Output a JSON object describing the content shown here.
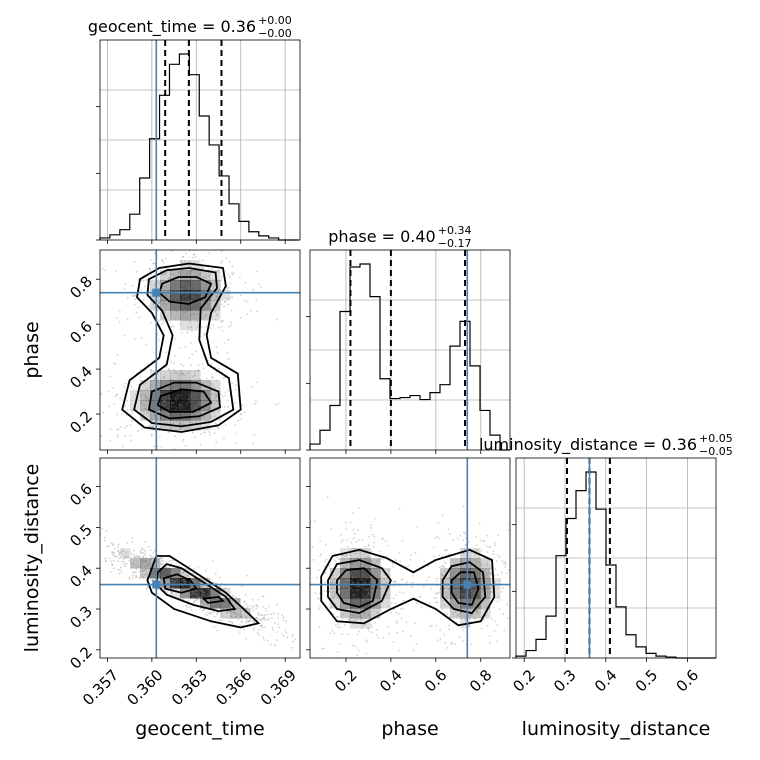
{
  "chart_data": {
    "type": "corner",
    "parameters": [
      "geocent_time",
      "phase",
      "luminosity_distance"
    ],
    "truths": {
      "geocent_time": 0.3603,
      "phase": 0.74,
      "luminosity_distance": 0.36
    },
    "axes": {
      "geocent_time": {
        "lim": [
          0.3565,
          0.37
        ],
        "ticks": [
          0.357,
          0.36,
          0.363,
          0.366,
          0.369
        ],
        "ticklabels": [
          "0.357",
          "0.360",
          "0.363",
          "0.366",
          "0.369"
        ]
      },
      "phase": {
        "lim": [
          0.04,
          0.93
        ],
        "ticks": [
          0.2,
          0.4,
          0.6,
          0.8
        ],
        "ticklabels": [
          "0.2",
          "0.4",
          "0.6",
          "0.8"
        ]
      },
      "luminosity_distance": {
        "lim": [
          0.18,
          0.67
        ],
        "ticks": [
          0.2,
          0.3,
          0.4,
          0.5,
          0.6
        ],
        "ticklabels": [
          "0.2",
          "0.3",
          "0.4",
          "0.5",
          "0.6"
        ]
      }
    },
    "marginals": [
      {
        "parameter": "geocent_time",
        "title": "geocent_time = 0.36",
        "title_sup": "+0.00",
        "title_sub": "−0.00",
        "quantiles": [
          0.3609,
          0.3625,
          0.3647
        ],
        "bin_edges": [
          0.3565,
          0.35717,
          0.35784,
          0.35851,
          0.35918,
          0.35985,
          0.36052,
          0.36119,
          0.36186,
          0.36253,
          0.3632,
          0.36387,
          0.36454,
          0.36521,
          0.36588,
          0.36655,
          0.36722,
          0.36789,
          0.36856,
          0.36923,
          0.3699
        ],
        "counts": [
          2,
          5,
          10,
          25,
          60,
          98,
          140,
          170,
          180,
          160,
          120,
          92,
          62,
          35,
          18,
          8,
          4,
          2,
          0,
          0
        ]
      },
      {
        "parameter": "phase",
        "title": "phase = 0.40",
        "title_sup": "+0.34",
        "title_sub": "−0.17",
        "quantiles": [
          0.22,
          0.4,
          0.73
        ],
        "bin_edges": [
          0.04,
          0.0845,
          0.129,
          0.1735,
          0.218,
          0.2625,
          0.307,
          0.3515,
          0.396,
          0.4405,
          0.485,
          0.5295,
          0.574,
          0.6185,
          0.663,
          0.7075,
          0.752,
          0.7965,
          0.841,
          0.8855,
          0.93
        ],
        "counts": [
          6,
          20,
          45,
          140,
          185,
          188,
          155,
          72,
          52,
          53,
          55,
          51,
          58,
          66,
          105,
          130,
          85,
          40,
          15,
          0
        ]
      },
      {
        "parameter": "luminosity_distance",
        "title": "luminosity_distance = 0.36",
        "title_sup": "+0.05",
        "title_sub": "−0.05",
        "quantiles": [
          0.305,
          0.36,
          0.41
        ],
        "bin_edges": [
          0.18,
          0.2045,
          0.229,
          0.2535,
          0.278,
          0.3025,
          0.327,
          0.3515,
          0.376,
          0.4005,
          0.425,
          0.4495,
          0.474,
          0.4985,
          0.523,
          0.5475,
          0.572,
          0.5965,
          0.621,
          0.6455,
          0.67
        ],
        "counts": [
          2,
          8,
          20,
          45,
          110,
          150,
          180,
          200,
          160,
          100,
          55,
          25,
          12,
          5,
          2,
          1,
          0,
          0,
          0,
          0
        ]
      }
    ],
    "joints": [
      {
        "x": "geocent_time",
        "y": "phase",
        "modes": [
          {
            "x": 0.3618,
            "y": 0.26,
            "sx": 0.0015,
            "sy": 0.065,
            "w": 0.55
          },
          {
            "x": 0.3624,
            "y": 0.73,
            "sx": 0.0013,
            "sy": 0.07,
            "w": 0.45
          }
        ],
        "contours": [
          [
            [
              0.3592,
              0.8
            ],
            [
              0.3605,
              0.85
            ],
            [
              0.3625,
              0.87
            ],
            [
              0.3648,
              0.85
            ],
            [
              0.365,
              0.77
            ],
            [
              0.364,
              0.65
            ],
            [
              0.3637,
              0.55
            ],
            [
              0.364,
              0.45
            ],
            [
              0.3658,
              0.38
            ],
            [
              0.366,
              0.22
            ],
            [
              0.3645,
              0.15
            ],
            [
              0.362,
              0.12
            ],
            [
              0.3595,
              0.14
            ],
            [
              0.358,
              0.22
            ],
            [
              0.3585,
              0.35
            ],
            [
              0.3605,
              0.45
            ],
            [
              0.3608,
              0.55
            ],
            [
              0.36,
              0.65
            ],
            [
              0.359,
              0.72
            ]
          ],
          [
            [
              0.3598,
              0.8
            ],
            [
              0.361,
              0.84
            ],
            [
              0.3625,
              0.85
            ],
            [
              0.3643,
              0.83
            ],
            [
              0.3644,
              0.76
            ],
            [
              0.3633,
              0.67
            ],
            [
              0.3632,
              0.53
            ],
            [
              0.3638,
              0.42
            ],
            [
              0.3652,
              0.36
            ],
            [
              0.3655,
              0.22
            ],
            [
              0.364,
              0.165
            ],
            [
              0.362,
              0.145
            ],
            [
              0.36,
              0.16
            ],
            [
              0.3588,
              0.22
            ],
            [
              0.3592,
              0.33
            ],
            [
              0.361,
              0.42
            ],
            [
              0.3614,
              0.55
            ],
            [
              0.3607,
              0.66
            ],
            [
              0.3597,
              0.73
            ]
          ],
          [
            [
              0.3607,
              0.78
            ],
            [
              0.3618,
              0.81
            ],
            [
              0.363,
              0.81
            ],
            [
              0.364,
              0.78
            ],
            [
              0.3636,
              0.72
            ],
            [
              0.3625,
              0.69
            ],
            [
              0.3612,
              0.7
            ],
            [
              0.3605,
              0.74
            ]
          ],
          [
            [
              0.36,
              0.3
            ],
            [
              0.3615,
              0.34
            ],
            [
              0.363,
              0.34
            ],
            [
              0.3645,
              0.3
            ],
            [
              0.3646,
              0.23
            ],
            [
              0.3632,
              0.19
            ],
            [
              0.3612,
              0.18
            ],
            [
              0.3598,
              0.22
            ]
          ],
          [
            [
              0.3606,
              0.28
            ],
            [
              0.362,
              0.31
            ],
            [
              0.3635,
              0.3
            ],
            [
              0.364,
              0.25
            ],
            [
              0.3628,
              0.21
            ],
            [
              0.3612,
              0.21
            ],
            [
              0.3604,
              0.24
            ]
          ]
        ]
      },
      {
        "x": "geocent_time",
        "y": "luminosity_distance",
        "modes": [
          {
            "x": 0.3625,
            "y": 0.355,
            "sx": 0.0022,
            "sy": 0.04,
            "w": 1.0,
            "rho": -0.92
          }
        ],
        "contours": [
          [
            [
              0.36,
              0.4
            ],
            [
              0.3603,
              0.43
            ],
            [
              0.3612,
              0.43
            ],
            [
              0.3625,
              0.4
            ],
            [
              0.365,
              0.34
            ],
            [
              0.3665,
              0.29
            ],
            [
              0.3672,
              0.265
            ],
            [
              0.366,
              0.255
            ],
            [
              0.364,
              0.27
            ],
            [
              0.3615,
              0.3
            ],
            [
              0.36,
              0.34
            ],
            [
              0.3597,
              0.37
            ]
          ],
          [
            [
              0.3604,
              0.39
            ],
            [
              0.361,
              0.41
            ],
            [
              0.362,
              0.4
            ],
            [
              0.3635,
              0.365
            ],
            [
              0.365,
              0.33
            ],
            [
              0.3656,
              0.3
            ],
            [
              0.3645,
              0.295
            ],
            [
              0.3628,
              0.31
            ],
            [
              0.361,
              0.335
            ],
            [
              0.3603,
              0.36
            ]
          ],
          [
            [
              0.3608,
              0.375
            ],
            [
              0.3617,
              0.385
            ],
            [
              0.3626,
              0.37
            ],
            [
              0.363,
              0.35
            ],
            [
              0.362,
              0.34
            ],
            [
              0.3609,
              0.35
            ]
          ],
          [
            [
              0.3635,
              0.325
            ],
            [
              0.3645,
              0.33
            ],
            [
              0.3648,
              0.32
            ],
            [
              0.3638,
              0.315
            ]
          ]
        ]
      },
      {
        "x": "phase",
        "y": "luminosity_distance",
        "modes": [
          {
            "x": 0.26,
            "y": 0.355,
            "sx": 0.065,
            "sy": 0.045,
            "w": 0.55
          },
          {
            "x": 0.74,
            "y": 0.355,
            "sx": 0.065,
            "sy": 0.045,
            "w": 0.45
          }
        ],
        "contours": [
          [
            [
              0.09,
              0.38
            ],
            [
              0.14,
              0.43
            ],
            [
              0.26,
              0.445
            ],
            [
              0.38,
              0.425
            ],
            [
              0.5,
              0.39
            ],
            [
              0.6,
              0.42
            ],
            [
              0.75,
              0.445
            ],
            [
              0.85,
              0.42
            ],
            [
              0.86,
              0.33
            ],
            [
              0.8,
              0.27
            ],
            [
              0.7,
              0.26
            ],
            [
              0.6,
              0.3
            ],
            [
              0.5,
              0.325
            ],
            [
              0.4,
              0.3
            ],
            [
              0.28,
              0.265
            ],
            [
              0.16,
              0.27
            ],
            [
              0.09,
              0.32
            ]
          ],
          [
            [
              0.12,
              0.37
            ],
            [
              0.16,
              0.41
            ],
            [
              0.26,
              0.42
            ],
            [
              0.36,
              0.4
            ],
            [
              0.4,
              0.37
            ],
            [
              0.36,
              0.32
            ],
            [
              0.26,
              0.29
            ],
            [
              0.16,
              0.3
            ],
            [
              0.12,
              0.33
            ]
          ],
          [
            [
              0.63,
              0.37
            ],
            [
              0.67,
              0.405
            ],
            [
              0.75,
              0.415
            ],
            [
              0.81,
              0.39
            ],
            [
              0.82,
              0.33
            ],
            [
              0.76,
              0.29
            ],
            [
              0.68,
              0.3
            ],
            [
              0.63,
              0.33
            ]
          ],
          [
            [
              0.16,
              0.37
            ],
            [
              0.2,
              0.395
            ],
            [
              0.28,
              0.4
            ],
            [
              0.34,
              0.37
            ],
            [
              0.32,
              0.32
            ],
            [
              0.26,
              0.305
            ],
            [
              0.19,
              0.315
            ],
            [
              0.16,
              0.34
            ]
          ],
          [
            [
              0.67,
              0.37
            ],
            [
              0.71,
              0.39
            ],
            [
              0.77,
              0.39
            ],
            [
              0.79,
              0.35
            ],
            [
              0.76,
              0.31
            ],
            [
              0.7,
              0.315
            ],
            [
              0.67,
              0.34
            ]
          ]
        ]
      }
    ]
  }
}
